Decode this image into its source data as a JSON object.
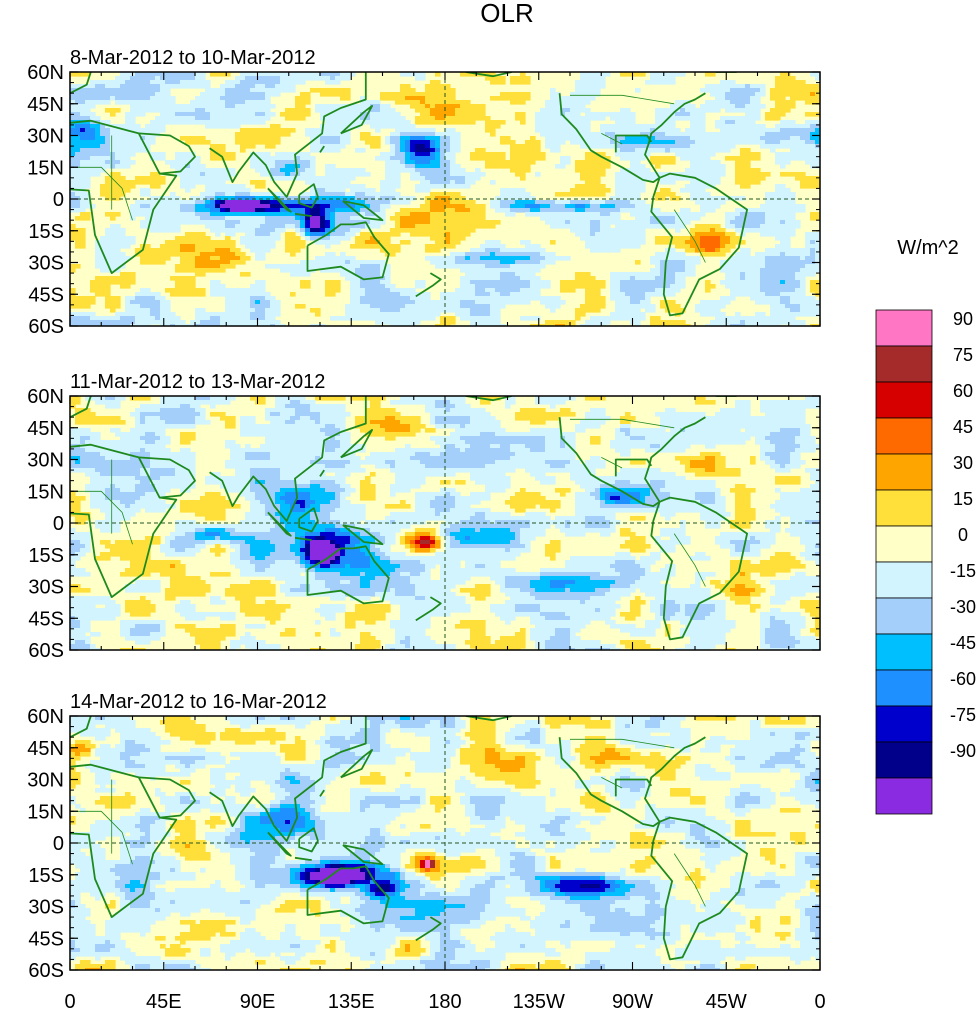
{
  "chart_data": {
    "type": "heatmap",
    "title": "OLR",
    "colorbar": {
      "title": "W/m^2",
      "levels": [
        "-90",
        "-75",
        "-60",
        "-45",
        "-30",
        "-15",
        "0",
        "15",
        "30",
        "45",
        "60",
        "75",
        "90"
      ],
      "colors": [
        "#8a2be2",
        "#00008b",
        "#0000cd",
        "#1e90ff",
        "#00bfff",
        "#a3cffa",
        "#d2f4fe",
        "#ffffc8",
        "#ffe03a",
        "#ffa500",
        "#ff6a00",
        "#d60000",
        "#a52a2a",
        "#ff77c4"
      ]
    },
    "lon_ticks": [
      "0",
      "45E",
      "90E",
      "135E",
      "180",
      "135W",
      "90W",
      "45W",
      "0"
    ],
    "lat_ticks": [
      "60N",
      "45N",
      "30N",
      "15N",
      "0",
      "15S",
      "30S",
      "45S",
      "60S"
    ],
    "panels": [
      {
        "title": "8-Mar-2012 to 10-Mar-2012",
        "features": [
          {
            "lon": 100,
            "lat": -3,
            "rx": 40,
            "ry": 4,
            "v": -70
          },
          {
            "lon": 82,
            "lat": -3,
            "rx": 10,
            "ry": 3,
            "v": -95
          },
          {
            "lon": 118,
            "lat": -12,
            "rx": 6,
            "ry": 6,
            "v": -92
          },
          {
            "lon": 168,
            "lat": 22,
            "rx": 10,
            "ry": 7,
            "v": -80
          },
          {
            "lon": 238,
            "lat": -3,
            "rx": 30,
            "ry": 3,
            "v": -55
          },
          {
            "lon": 8,
            "lat": 32,
            "rx": 10,
            "ry": 6,
            "v": -55
          },
          {
            "lon": 105,
            "lat": 15,
            "rx": 12,
            "ry": 6,
            "v": -45
          },
          {
            "lon": 175,
            "lat": -10,
            "rx": 20,
            "ry": 7,
            "v": 40
          },
          {
            "lon": 310,
            "lat": -20,
            "rx": 10,
            "ry": 10,
            "v": 40
          },
          {
            "lon": 160,
            "lat": -25,
            "rx": 40,
            "ry": 6,
            "v": 25
          },
          {
            "lon": 240,
            "lat": 25,
            "rx": 25,
            "ry": 15,
            "v": 18
          },
          {
            "lon": 60,
            "lat": -28,
            "rx": 30,
            "ry": 8,
            "v": 22
          },
          {
            "lon": 175,
            "lat": 40,
            "rx": 15,
            "ry": 8,
            "v": 28
          },
          {
            "lon": 200,
            "lat": -28,
            "rx": 40,
            "ry": 5,
            "v": -40
          },
          {
            "lon": 280,
            "lat": 25,
            "rx": 25,
            "ry": 5,
            "v": -35
          },
          {
            "lon": 35,
            "lat": 5,
            "rx": 12,
            "ry": 10,
            "v": 20
          }
        ]
      },
      {
        "title": "11-Mar-2012 to 13-Mar-2012",
        "features": [
          {
            "lon": 125,
            "lat": -10,
            "rx": 25,
            "ry": 12,
            "v": -65
          },
          {
            "lon": 120,
            "lat": -14,
            "rx": 8,
            "ry": 6,
            "v": -95
          },
          {
            "lon": 70,
            "lat": -5,
            "rx": 12,
            "ry": 4,
            "v": -65
          },
          {
            "lon": 110,
            "lat": 12,
            "rx": 20,
            "ry": 8,
            "v": -40
          },
          {
            "lon": 168,
            "lat": -8,
            "rx": 12,
            "ry": 7,
            "v": 45
          },
          {
            "lon": 172,
            "lat": -9,
            "rx": 6,
            "ry": 3,
            "v": 65
          },
          {
            "lon": 195,
            "lat": -7,
            "rx": 20,
            "ry": 5,
            "v": -45
          },
          {
            "lon": 265,
            "lat": 13,
            "rx": 15,
            "ry": 5,
            "v": -55
          },
          {
            "lon": 230,
            "lat": -28,
            "rx": 30,
            "ry": 5,
            "v": -35
          },
          {
            "lon": 195,
            "lat": 30,
            "rx": 30,
            "ry": 12,
            "v": -20
          },
          {
            "lon": 60,
            "lat": -30,
            "rx": 30,
            "ry": 10,
            "v": 22
          },
          {
            "lon": 300,
            "lat": 25,
            "rx": 20,
            "ry": 8,
            "v": 20
          },
          {
            "lon": 20,
            "lat": 25,
            "rx": 20,
            "ry": 10,
            "v": -20
          },
          {
            "lon": 320,
            "lat": -30,
            "rx": 15,
            "ry": 6,
            "v": 30
          },
          {
            "lon": 160,
            "lat": 45,
            "rx": 15,
            "ry": 6,
            "v": 25
          }
        ]
      },
      {
        "title": "14-Mar-2012 to 16-Mar-2012",
        "features": [
          {
            "lon": 135,
            "lat": -15,
            "rx": 25,
            "ry": 6,
            "v": -80
          },
          {
            "lon": 125,
            "lat": -16,
            "rx": 12,
            "ry": 4,
            "v": -95
          },
          {
            "lon": 150,
            "lat": -22,
            "rx": 8,
            "ry": 4,
            "v": -75
          },
          {
            "lon": 170,
            "lat": -10,
            "rx": 8,
            "ry": 6,
            "v": 48
          },
          {
            "lon": 172,
            "lat": -10,
            "rx": 3,
            "ry": 2,
            "v": 70
          },
          {
            "lon": 100,
            "lat": 10,
            "rx": 25,
            "ry": 10,
            "v": -40
          },
          {
            "lon": 245,
            "lat": -20,
            "rx": 25,
            "ry": 5,
            "v": -55
          },
          {
            "lon": 200,
            "lat": 20,
            "rx": 15,
            "ry": 10,
            "v": -40
          },
          {
            "lon": 200,
            "lat": 35,
            "rx": 25,
            "ry": 10,
            "v": 25
          },
          {
            "lon": 265,
            "lat": 40,
            "rx": 15,
            "ry": 8,
            "v": 30
          },
          {
            "lon": 5,
            "lat": 45,
            "rx": 8,
            "ry": 6,
            "v": 35
          },
          {
            "lon": 60,
            "lat": -5,
            "rx": 20,
            "ry": 8,
            "v": 22
          },
          {
            "lon": 300,
            "lat": -25,
            "rx": 15,
            "ry": 10,
            "v": 20
          },
          {
            "lon": 185,
            "lat": -30,
            "rx": 30,
            "ry": 8,
            "v": -30
          },
          {
            "lon": 30,
            "lat": -20,
            "rx": 10,
            "ry": 8,
            "v": -35
          }
        ]
      }
    ]
  }
}
